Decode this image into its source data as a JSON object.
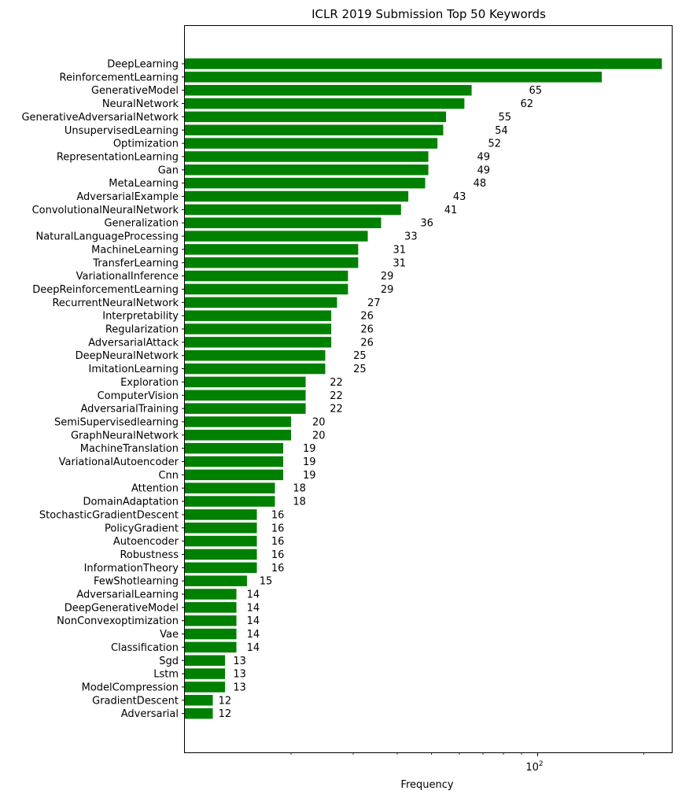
{
  "chart_data": {
    "type": "bar",
    "orientation": "horizontal",
    "title": "ICLR 2019 Submission Top 50 Keywords",
    "xlabel": "Frequency",
    "ylabel": "",
    "xscale": "log",
    "xlim": [
      10,
      240
    ],
    "x_major_tick": {
      "value": 100,
      "label_base": "10",
      "label_exp": "2"
    },
    "bar_color": "#008000",
    "categories": [
      "DeepLearning",
      "ReinforcementLearning",
      "GenerativeModel",
      "NeuralNetwork",
      "GenerativeAdversarialNetwork",
      "UnsupervisedLearning",
      "Optimization",
      "RepresentationLearning",
      "Gan",
      "MetaLearning",
      "AdversarialExample",
      "ConvolutionalNeuralNetwork",
      "Generalization",
      "NaturalLanguageProcessing",
      "MachineLearning",
      "TransferLearning",
      "VariationalInference",
      "DeepReinforcementLearning",
      "RecurrentNeuralNetwork",
      "Interpretability",
      "Regularization",
      "AdversarialAttack",
      "DeepNeuralNetwork",
      "ImitationLearning",
      "Exploration",
      "ComputerVision",
      "AdversarialTraining",
      "SemiSupervisedlearning",
      "GraphNeuralNetwork",
      "MachineTranslation",
      "VariationalAutoencoder",
      "Cnn",
      "Attention",
      "DomainAdaptation",
      "StochasticGradientDescent",
      "PolicyGradient",
      "Autoencoder",
      "Robustness",
      "InformationTheory",
      "FewShotlearning",
      "AdversarialLearning",
      "DeepGenerativeModel",
      "NonConvexoptimization",
      "Vae",
      "Classification",
      "Sgd",
      "Lstm",
      "ModelCompression",
      "GradientDescent",
      "Adversarial"
    ],
    "values": [
      225,
      152,
      65,
      62,
      55,
      54,
      52,
      49,
      49,
      48,
      43,
      41,
      36,
      33,
      31,
      31,
      29,
      29,
      27,
      26,
      26,
      26,
      25,
      25,
      22,
      22,
      22,
      20,
      20,
      19,
      19,
      19,
      18,
      18,
      16,
      16,
      16,
      16,
      16,
      15,
      14,
      14,
      14,
      14,
      14,
      13,
      13,
      13,
      12,
      12
    ]
  }
}
